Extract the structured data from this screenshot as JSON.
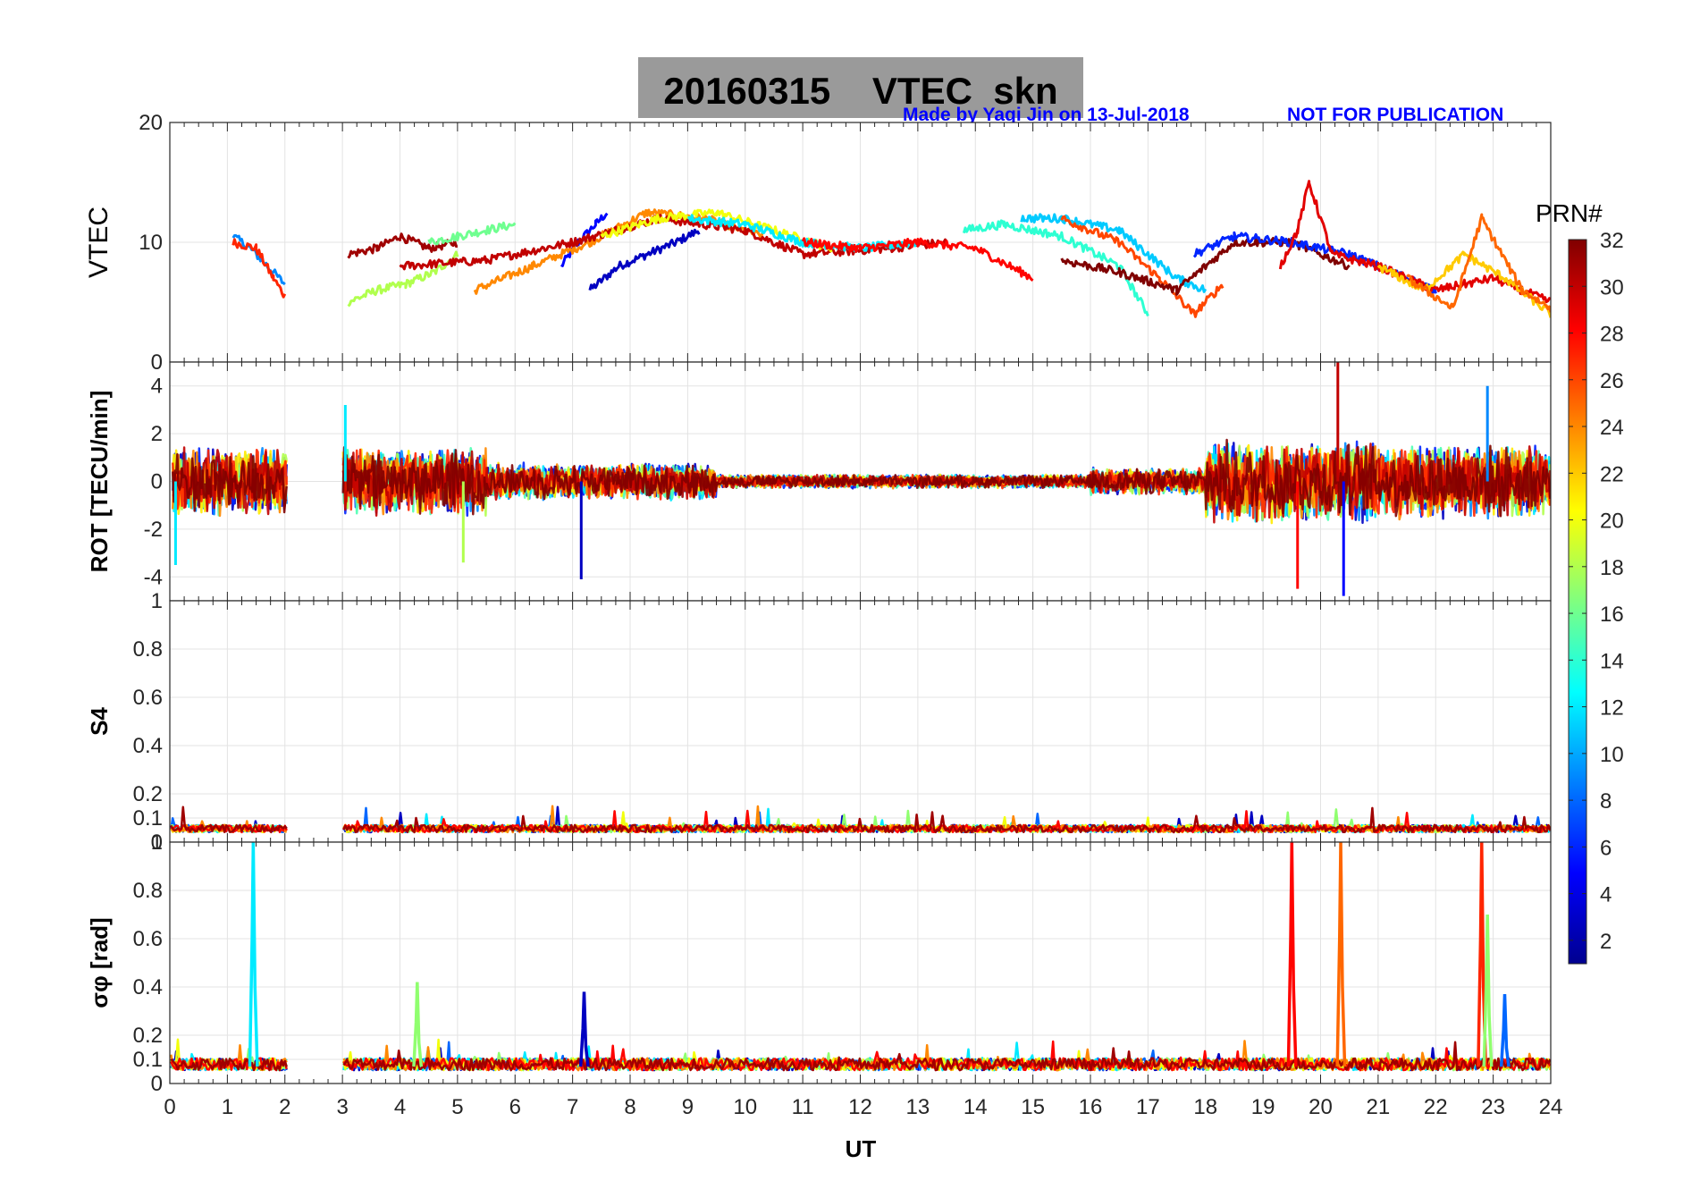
{
  "title": "20160315    VTEC  skn",
  "credit": "Made by Yaqi Jin on 13-Jul-2018",
  "notice": "NOT FOR PUBLICATION",
  "colorbar": {
    "title": "PRN#",
    "ticks": [
      "2",
      "4",
      "6",
      "8",
      "10",
      "12",
      "14",
      "16",
      "18",
      "20",
      "22",
      "24",
      "26",
      "28",
      "30",
      "32"
    ],
    "range": [
      1,
      32
    ],
    "colormap": "jet"
  },
  "xaxis": {
    "label": "UT",
    "ticks": [
      "0",
      "1",
      "2",
      "3",
      "4",
      "5",
      "6",
      "7",
      "8",
      "9",
      "10",
      "11",
      "12",
      "13",
      "14",
      "15",
      "16",
      "17",
      "18",
      "19",
      "20",
      "21",
      "22",
      "23",
      "24"
    ]
  },
  "chart_data": [
    {
      "type": "line",
      "panel": "VTEC",
      "ylabel": "VTEC",
      "xlim": [
        0,
        24
      ],
      "ylim": [
        0,
        20
      ],
      "yticks": [
        "0",
        "10",
        "20"
      ],
      "grid": true,
      "series": [
        {
          "prn": 5,
          "x": [
            6.8,
            7.1,
            7.4,
            7.6
          ],
          "y": [
            8,
            10,
            11.5,
            12.5
          ]
        },
        {
          "prn": 3,
          "x": [
            7.3,
            7.8,
            8.3,
            8.8,
            9.2
          ],
          "y": [
            6,
            8,
            9,
            10,
            11
          ]
        },
        {
          "prn": 9,
          "x": [
            1.1,
            1.4,
            1.7,
            2.0
          ],
          "y": [
            10.5,
            9.5,
            8,
            6.5
          ]
        },
        {
          "prn": 27,
          "x": [
            1.1,
            1.5,
            1.8,
            2.0
          ],
          "y": [
            10,
            9.5,
            7,
            5.5
          ]
        },
        {
          "prn": 18,
          "x": [
            3.1,
            3.6,
            4.1,
            4.6,
            5.0
          ],
          "y": [
            5,
            6,
            6.5,
            7.5,
            9
          ]
        },
        {
          "prn": 31,
          "x": [
            3.1,
            3.6,
            4.0,
            4.5,
            5.0
          ],
          "y": [
            9,
            9.5,
            10.5,
            9.5,
            10
          ]
        },
        {
          "prn": 16,
          "x": [
            4.5,
            5.0,
            5.5,
            6.0
          ],
          "y": [
            10,
            10.5,
            11,
            11.5
          ]
        },
        {
          "prn": 24,
          "x": [
            5.3,
            6.3,
            7.3,
            8.3,
            9.3,
            10.3
          ],
          "y": [
            6,
            8,
            10,
            12.5,
            12,
            10.5
          ]
        },
        {
          "prn": 30,
          "x": [
            4.0,
            5.5,
            7.0,
            8.5,
            10.0,
            11.0,
            12.5,
            13.5
          ],
          "y": [
            8,
            8.5,
            10,
            12,
            11,
            9,
            9.5,
            10
          ]
        },
        {
          "prn": 20,
          "x": [
            7.5,
            8.5,
            9.5,
            10.5,
            11.5
          ],
          "y": [
            10.5,
            12,
            12.5,
            11,
            9.5
          ]
        },
        {
          "prn": 12,
          "x": [
            9.0,
            10.0,
            11.0,
            12.0,
            13.0
          ],
          "y": [
            12,
            11.5,
            10,
            9.5,
            10
          ]
        },
        {
          "prn": 28,
          "x": [
            11.0,
            12.0,
            13.0,
            14.0,
            15.0
          ],
          "y": [
            10,
            9.5,
            10,
            9.5,
            7
          ]
        },
        {
          "prn": 14,
          "x": [
            13.8,
            14.5,
            15.5,
            16.5,
            17.0
          ],
          "y": [
            11,
            11.5,
            10.5,
            8,
            4
          ]
        },
        {
          "prn": 11,
          "x": [
            14.8,
            15.5,
            16.5,
            17.5,
            18.0
          ],
          "y": [
            12,
            12,
            11,
            7,
            6
          ]
        },
        {
          "prn": 26,
          "x": [
            15.5,
            16.5,
            17.2,
            17.8,
            18.3
          ],
          "y": [
            12,
            10,
            7,
            4,
            6.5
          ]
        },
        {
          "prn": 32,
          "x": [
            15.5,
            16.5,
            17.5,
            18.5,
            19.5,
            20.5
          ],
          "y": [
            8.5,
            7.5,
            6,
            10,
            10,
            8
          ]
        },
        {
          "prn": 6,
          "x": [
            17.8,
            18.5,
            19.5,
            20.5,
            21.5,
            22.0
          ],
          "y": [
            9,
            10.5,
            10,
            9,
            7,
            6
          ]
        },
        {
          "prn": 29,
          "x": [
            19.3,
            19.6,
            19.8,
            20.2,
            21,
            22,
            23,
            24
          ],
          "y": [
            8,
            11,
            15,
            9,
            8,
            6,
            7,
            5
          ]
        },
        {
          "prn": 22,
          "x": [
            21.0,
            21.8,
            22.5,
            23.2,
            24.0
          ],
          "y": [
            8,
            6,
            9,
            7,
            4
          ]
        },
        {
          "prn": 25,
          "x": [
            21.5,
            22.3,
            22.8,
            23.5,
            24.0
          ],
          "y": [
            7,
            4.5,
            12,
            6,
            4.5
          ]
        }
      ]
    },
    {
      "type": "line",
      "panel": "ROT",
      "ylabel": "ROT [TECU/min]",
      "xlim": [
        0,
        24
      ],
      "ylim": [
        -5,
        5
      ],
      "yticks": [
        "-4",
        "-2",
        "0",
        "2",
        "4"
      ],
      "grid": true,
      "notable_extremes": [
        {
          "x": 0.1,
          "y": -3.5
        },
        {
          "x": 3.05,
          "y": 3.2
        },
        {
          "x": 5.1,
          "y": -3.4
        },
        {
          "x": 7.15,
          "y": -4.1
        },
        {
          "x": 19.6,
          "y": -4.5
        },
        {
          "x": 20.3,
          "y": 5.0
        },
        {
          "x": 20.4,
          "y": -4.8
        },
        {
          "x": 22.9,
          "y": 4.0
        }
      ],
      "envelope": [
        {
          "x0": 0,
          "x1": 5.5,
          "amp": 1.5
        },
        {
          "x0": 5.5,
          "x1": 9.5,
          "amp": 0.8
        },
        {
          "x0": 9.5,
          "x1": 16,
          "amp": 0.3
        },
        {
          "x0": 16,
          "x1": 18,
          "amp": 0.6
        },
        {
          "x0": 18,
          "x1": 21,
          "amp": 1.8
        },
        {
          "x0": 21,
          "x1": 24,
          "amp": 1.6
        }
      ]
    },
    {
      "type": "line",
      "panel": "S4",
      "ylabel": "S4",
      "xlim": [
        0,
        24
      ],
      "ylim": [
        0,
        1
      ],
      "yticks": [
        "0",
        "0.1",
        "0.2",
        "0.4",
        "0.6",
        "0.8",
        "1"
      ],
      "grid": true,
      "baseline": 0.05,
      "noise": 0.03
    },
    {
      "type": "line",
      "panel": "sigma_phi",
      "ylabel": "σφ [rad]",
      "xlim": [
        0,
        24
      ],
      "ylim": [
        0,
        1
      ],
      "yticks": [
        "0",
        "0.1",
        "0.2",
        "0.4",
        "0.6",
        "0.8",
        "1"
      ],
      "grid": true,
      "baseline": 0.07,
      "spikes": [
        {
          "x": 1.45,
          "y": 1.0,
          "prn": 12
        },
        {
          "x": 7.2,
          "y": 0.38,
          "prn": 3
        },
        {
          "x": 4.3,
          "y": 0.42,
          "prn": 17
        },
        {
          "x": 19.5,
          "y": 1.0,
          "prn": 28
        },
        {
          "x": 20.35,
          "y": 1.0,
          "prn": 25
        },
        {
          "x": 22.8,
          "y": 1.0,
          "prn": 27
        },
        {
          "x": 22.9,
          "y": 0.7,
          "prn": 17
        },
        {
          "x": 23.2,
          "y": 0.37,
          "prn": 8
        }
      ]
    }
  ]
}
